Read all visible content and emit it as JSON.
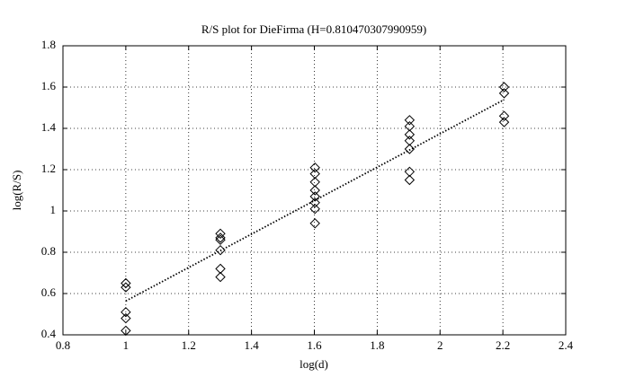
{
  "chart_data": {
    "type": "scatter",
    "title": "R/S plot for DieFirma (H=0.810470307990959)",
    "x_label": "log(d)",
    "y_label": "log(R/S)",
    "xlim": [
      0.8,
      2.4
    ],
    "xticks": [
      0.8,
      1,
      1.2,
      1.4,
      1.6,
      1.8,
      2,
      2.2,
      2.4
    ],
    "ylim": [
      0.4,
      1.8
    ],
    "yticks": [
      0.4,
      0.6,
      0.8,
      1,
      1.2,
      1.4,
      1.6,
      1.8
    ],
    "grid": true,
    "series": [
      {
        "color": "#000000",
        "marker": "diamond",
        "x": [
          1,
          1,
          1,
          1,
          1,
          1.301,
          1.301,
          1.301,
          1.301,
          1.301,
          1.301,
          1.602,
          1.602,
          1.602,
          1.602,
          1.602,
          1.602,
          1.602,
          1.602,
          1.903,
          1.903,
          1.903,
          1.903,
          1.903,
          1.903,
          1.903,
          2.204,
          2.204,
          2.204,
          2.204
        ],
        "values": [
          0.65,
          0.63,
          0.51,
          0.48,
          0.42,
          0.89,
          0.87,
          0.86,
          0.81,
          0.72,
          0.68,
          1.21,
          1.18,
          1.14,
          1.1,
          1.07,
          1.04,
          1.01,
          0.94,
          1.44,
          1.41,
          1.37,
          1.34,
          1.3,
          1.19,
          1.15,
          1.6,
          1.57,
          1.46,
          1.43
        ]
      },
      {
        "color": "#000000",
        "line": "dotted",
        "x": [
          1,
          2.204
        ],
        "values": [
          0.564,
          1.539
        ]
      }
    ]
  }
}
